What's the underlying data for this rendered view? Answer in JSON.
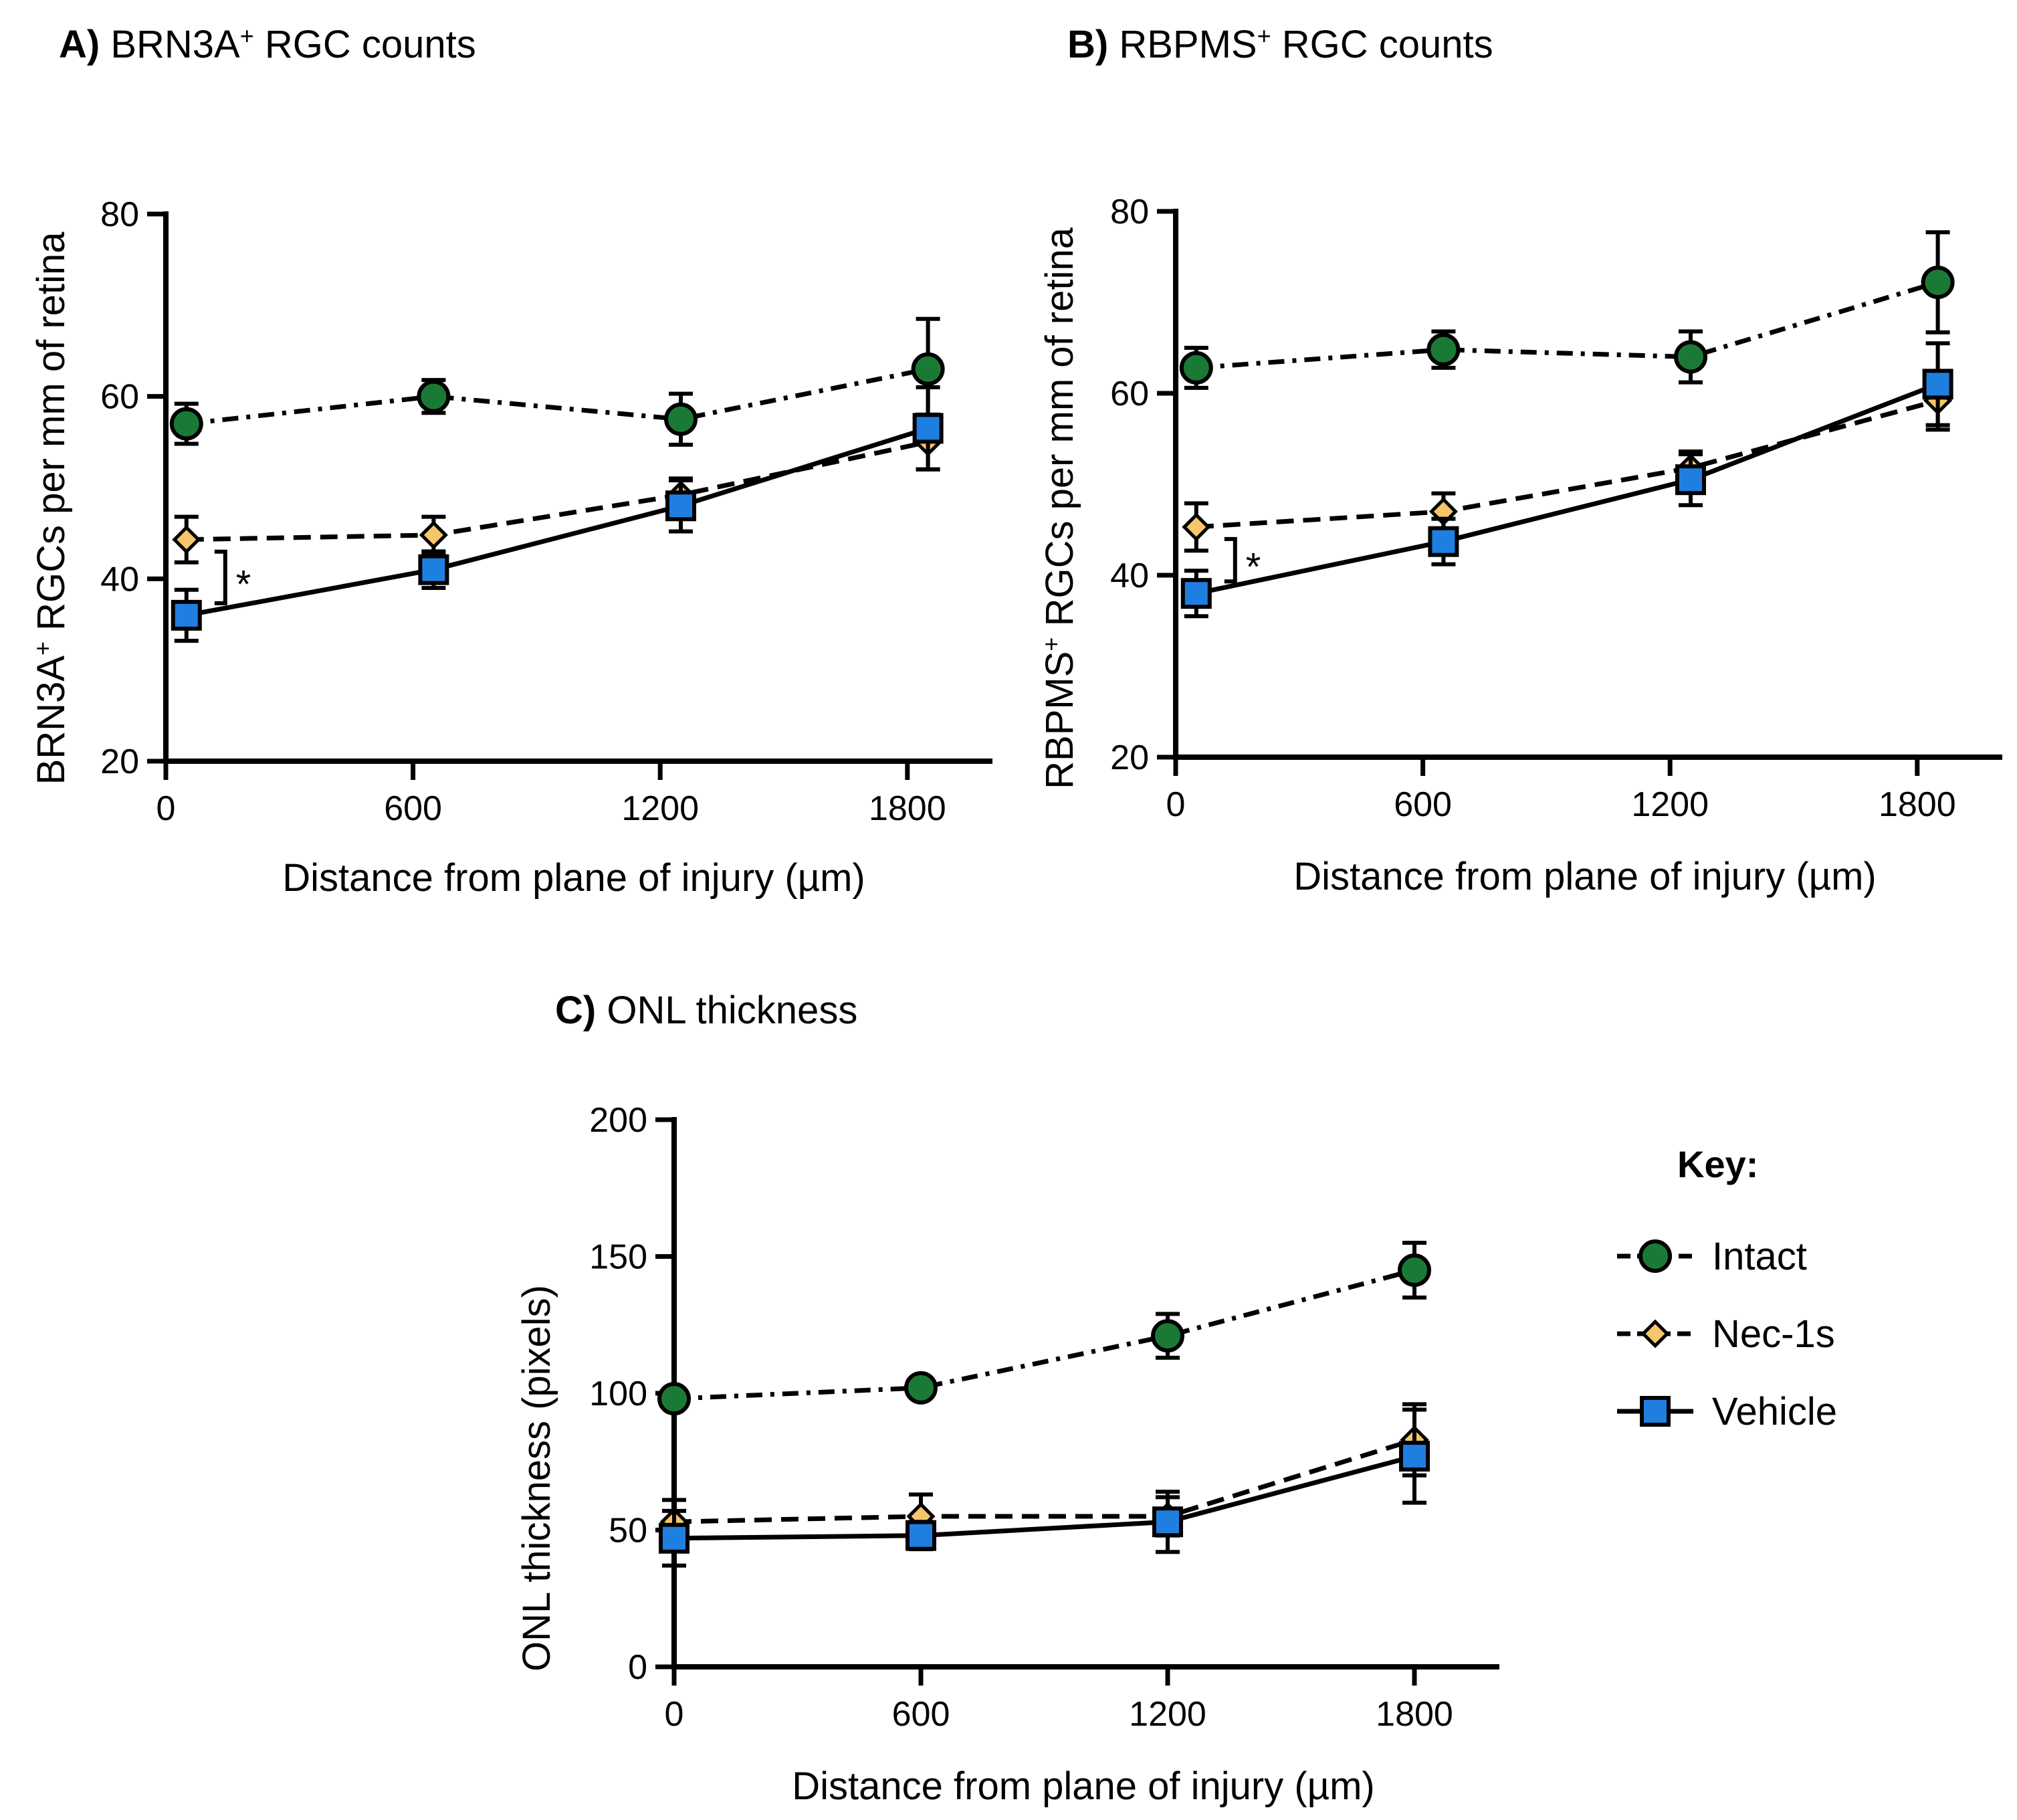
{
  "panels": [
    {
      "title_bold": "A)",
      "title_text": "BRN3A",
      "title_sup": "+",
      "title_tail": " RGC counts",
      "ylabel": "BRN3A",
      "ylabel_sup": "+",
      "ylabel_tail": " RGCs per mm of retina",
      "xlabel": "Distance from plane of injury (µm)",
      "sig": "*"
    },
    {
      "title_bold": "B)",
      "title_text": "RBPMS",
      "title_sup": "+",
      "title_tail": " RGC counts",
      "ylabel": "RBPMS",
      "ylabel_sup": "+",
      "ylabel_tail": " RGCs per mm of retina",
      "xlabel": "Distance from plane of injury (µm)",
      "sig": "*"
    },
    {
      "title_bold": "C)",
      "title_text": "ONL thickness",
      "title_sup": "",
      "title_tail": "",
      "ylabel": "ONL thickness (pixels)",
      "ylabel_sup": "",
      "ylabel_tail": "",
      "xlabel": "Distance from plane of injury (µm)",
      "sig": ""
    }
  ],
  "key": {
    "title": "Key:",
    "items": [
      {
        "label": "Intact",
        "color": "#1a7a35",
        "marker": "circle",
        "dash": "dash-dot"
      },
      {
        "label": "Nec-1s",
        "color": "#f5c66a",
        "marker": "diamond",
        "dash": "dashed"
      },
      {
        "label": "Vehicle",
        "color": "#1f7fe0",
        "marker": "square",
        "dash": "solid"
      }
    ]
  },
  "chart_data": [
    {
      "type": "line",
      "title": "A) BRN3A+ RGC counts",
      "xlabel": "Distance from plane of injury (µm)",
      "ylabel": "BRN3A+ RGCs per mm of retina",
      "xlim": [
        0,
        2000
      ],
      "ylim": [
        20,
        80
      ],
      "xticks": [
        0,
        600,
        1200,
        1800
      ],
      "yticks": [
        20,
        40,
        60,
        80
      ],
      "series": [
        {
          "name": "Intact",
          "x": [
            50,
            650,
            1250,
            1850
          ],
          "y": [
            57,
            60,
            57.5,
            63
          ],
          "err": [
            2.2,
            1.8,
            2.8,
            5.5
          ]
        },
        {
          "name": "Nec-1s",
          "x": [
            50,
            650,
            1250,
            1850
          ],
          "y": [
            44.3,
            44.8,
            49.2,
            55
          ],
          "err": [
            2.5,
            2.0,
            1.8,
            3.0
          ]
        },
        {
          "name": "Vehicle",
          "x": [
            50,
            650,
            1250,
            1850
          ],
          "y": [
            36,
            41,
            48,
            56.5
          ],
          "err": [
            2.8,
            2.0,
            2.8,
            4.5
          ]
        }
      ],
      "annotations": [
        {
          "text": "*",
          "between": [
            "Nec-1s",
            "Vehicle"
          ],
          "x": 50
        }
      ]
    },
    {
      "type": "line",
      "title": "B) RBPMS+ RGC counts",
      "xlabel": "Distance from plane of injury (µm)",
      "ylabel": "RBPMS+ RGCs per mm of retina",
      "xlim": [
        0,
        2000
      ],
      "ylim": [
        20,
        80
      ],
      "xticks": [
        0,
        600,
        1200,
        1800
      ],
      "yticks": [
        20,
        40,
        60,
        80
      ],
      "series": [
        {
          "name": "Intact",
          "x": [
            50,
            650,
            1250,
            1850
          ],
          "y": [
            62.8,
            64.8,
            64,
            72.2
          ],
          "err": [
            2.2,
            2.0,
            2.8,
            5.5
          ]
        },
        {
          "name": "Nec-1s",
          "x": [
            50,
            650,
            1250,
            1850
          ],
          "y": [
            45.3,
            47,
            51.8,
            59.2
          ],
          "err": [
            2.6,
            2.0,
            1.8,
            3.2
          ]
        },
        {
          "name": "Vehicle",
          "x": [
            50,
            650,
            1250,
            1850
          ],
          "y": [
            38,
            43.7,
            50.5,
            61
          ],
          "err": [
            2.5,
            2.5,
            2.8,
            4.5
          ]
        }
      ],
      "annotations": [
        {
          "text": "*",
          "between": [
            "Nec-1s",
            "Vehicle"
          ],
          "x": 50
        }
      ]
    },
    {
      "type": "line",
      "title": "C) ONL thickness",
      "xlabel": "Distance from plane of injury (µm)",
      "ylabel": "ONL thickness (pixels)",
      "xlim": [
        0,
        2000
      ],
      "ylim": [
        0,
        200
      ],
      "xticks": [
        0,
        600,
        1200,
        1800
      ],
      "yticks": [
        0,
        50,
        100,
        150,
        200
      ],
      "series": [
        {
          "name": "Intact",
          "x": [
            0,
            600,
            1200,
            1800
          ],
          "y": [
            98,
            102,
            121,
            145
          ],
          "err": [
            0,
            2,
            8,
            10
          ]
        },
        {
          "name": "Nec-1s",
          "x": [
            0,
            600,
            1200,
            1800
          ],
          "y": [
            53,
            55,
            55,
            83
          ],
          "err": [
            8,
            8,
            7,
            13
          ]
        },
        {
          "name": "Vehicle",
          "x": [
            0,
            600,
            1200,
            1800
          ],
          "y": [
            47,
            48,
            53,
            77
          ],
          "err": [
            10,
            5,
            11,
            17
          ]
        }
      ]
    }
  ]
}
